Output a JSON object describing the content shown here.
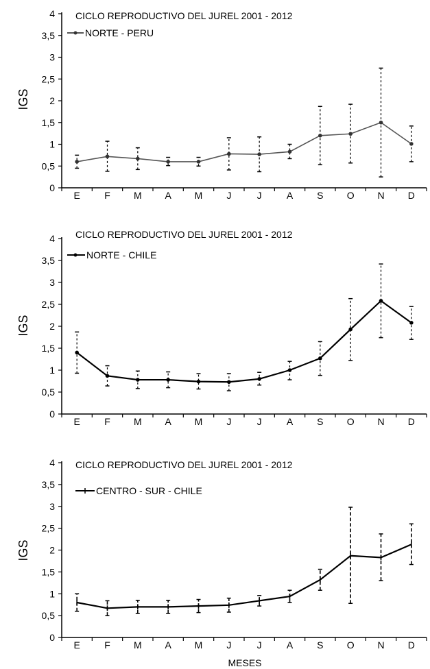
{
  "chart_data": [
    {
      "type": "line",
      "title": "CICLO REPRODUCTIVO DEL  JUREL  2001 - 2012",
      "ylabel": "IGS",
      "xlabel": "",
      "ylim": [
        0,
        4
      ],
      "yticks": [
        "0",
        "0,5",
        "1",
        "1,5",
        "2",
        "2,5",
        "3",
        "3,5",
        "4"
      ],
      "categories": [
        "E",
        "F",
        "M",
        "A",
        "M",
        "J",
        "J",
        "A",
        "S",
        "O",
        "N",
        "D"
      ],
      "series": [
        {
          "name": "NORTE - PERU",
          "color": "#555555",
          "values": [
            0.6,
            0.72,
            0.67,
            0.6,
            0.6,
            0.78,
            0.77,
            0.83,
            1.2,
            1.24,
            1.5,
            1.01
          ],
          "err_low": [
            0.45,
            0.38,
            0.42,
            0.51,
            0.5,
            0.41,
            0.37,
            0.67,
            0.53,
            0.57,
            0.25,
            0.6
          ],
          "err_high": [
            0.75,
            1.07,
            0.92,
            0.7,
            0.7,
            1.15,
            1.17,
            1.0,
            1.87,
            1.92,
            2.75,
            1.42
          ]
        }
      ]
    },
    {
      "type": "line",
      "title": "CICLO REPRODUCTIVO DEL  JUREL  2001 - 2012",
      "ylabel": "IGS",
      "xlabel": "",
      "ylim": [
        0,
        4
      ],
      "yticks": [
        "0",
        "0,5",
        "1",
        "1,5",
        "2",
        "2,5",
        "3",
        "3,5",
        "4"
      ],
      "categories": [
        "E",
        "F",
        "M",
        "A",
        "M",
        "J",
        "J",
        "A",
        "S",
        "O",
        "N",
        "D"
      ],
      "series": [
        {
          "name": "NORTE - CHILE",
          "color": "#000000",
          "values": [
            1.4,
            0.87,
            0.78,
            0.78,
            0.74,
            0.73,
            0.8,
            1.0,
            1.27,
            1.93,
            2.58,
            2.08
          ],
          "err_low": [
            0.93,
            0.64,
            0.58,
            0.6,
            0.57,
            0.53,
            0.66,
            0.78,
            0.88,
            1.22,
            1.74,
            1.7
          ],
          "err_high": [
            1.87,
            1.1,
            0.98,
            0.96,
            0.92,
            0.92,
            0.95,
            1.2,
            1.65,
            2.63,
            3.42,
            2.45
          ]
        }
      ]
    },
    {
      "type": "line",
      "title": "CICLO REPRODUCTIVO DEL  JUREL  2001 - 2012",
      "ylabel": "IGS",
      "xlabel": "MESES",
      "ylim": [
        0,
        4
      ],
      "yticks": [
        "0",
        "0,5",
        "1",
        "1,5",
        "2",
        "2,5",
        "3",
        "3,5",
        "4"
      ],
      "categories": [
        "E",
        "F",
        "M",
        "A",
        "M",
        "J",
        "J",
        "A",
        "S",
        "O",
        "N",
        "D"
      ],
      "series": [
        {
          "name": "CENTRO - SUR - CHILE",
          "color": "#000000",
          "values": [
            0.8,
            0.67,
            0.7,
            0.7,
            0.72,
            0.74,
            0.84,
            0.94,
            1.32,
            1.87,
            1.83,
            2.13
          ],
          "err_low": [
            0.6,
            0.5,
            0.55,
            0.55,
            0.57,
            0.58,
            0.72,
            0.8,
            1.08,
            0.78,
            1.3,
            1.67
          ],
          "err_high": [
            1.0,
            0.84,
            0.85,
            0.85,
            0.87,
            0.9,
            0.96,
            1.08,
            1.56,
            2.98,
            2.37,
            2.6
          ]
        }
      ]
    }
  ]
}
